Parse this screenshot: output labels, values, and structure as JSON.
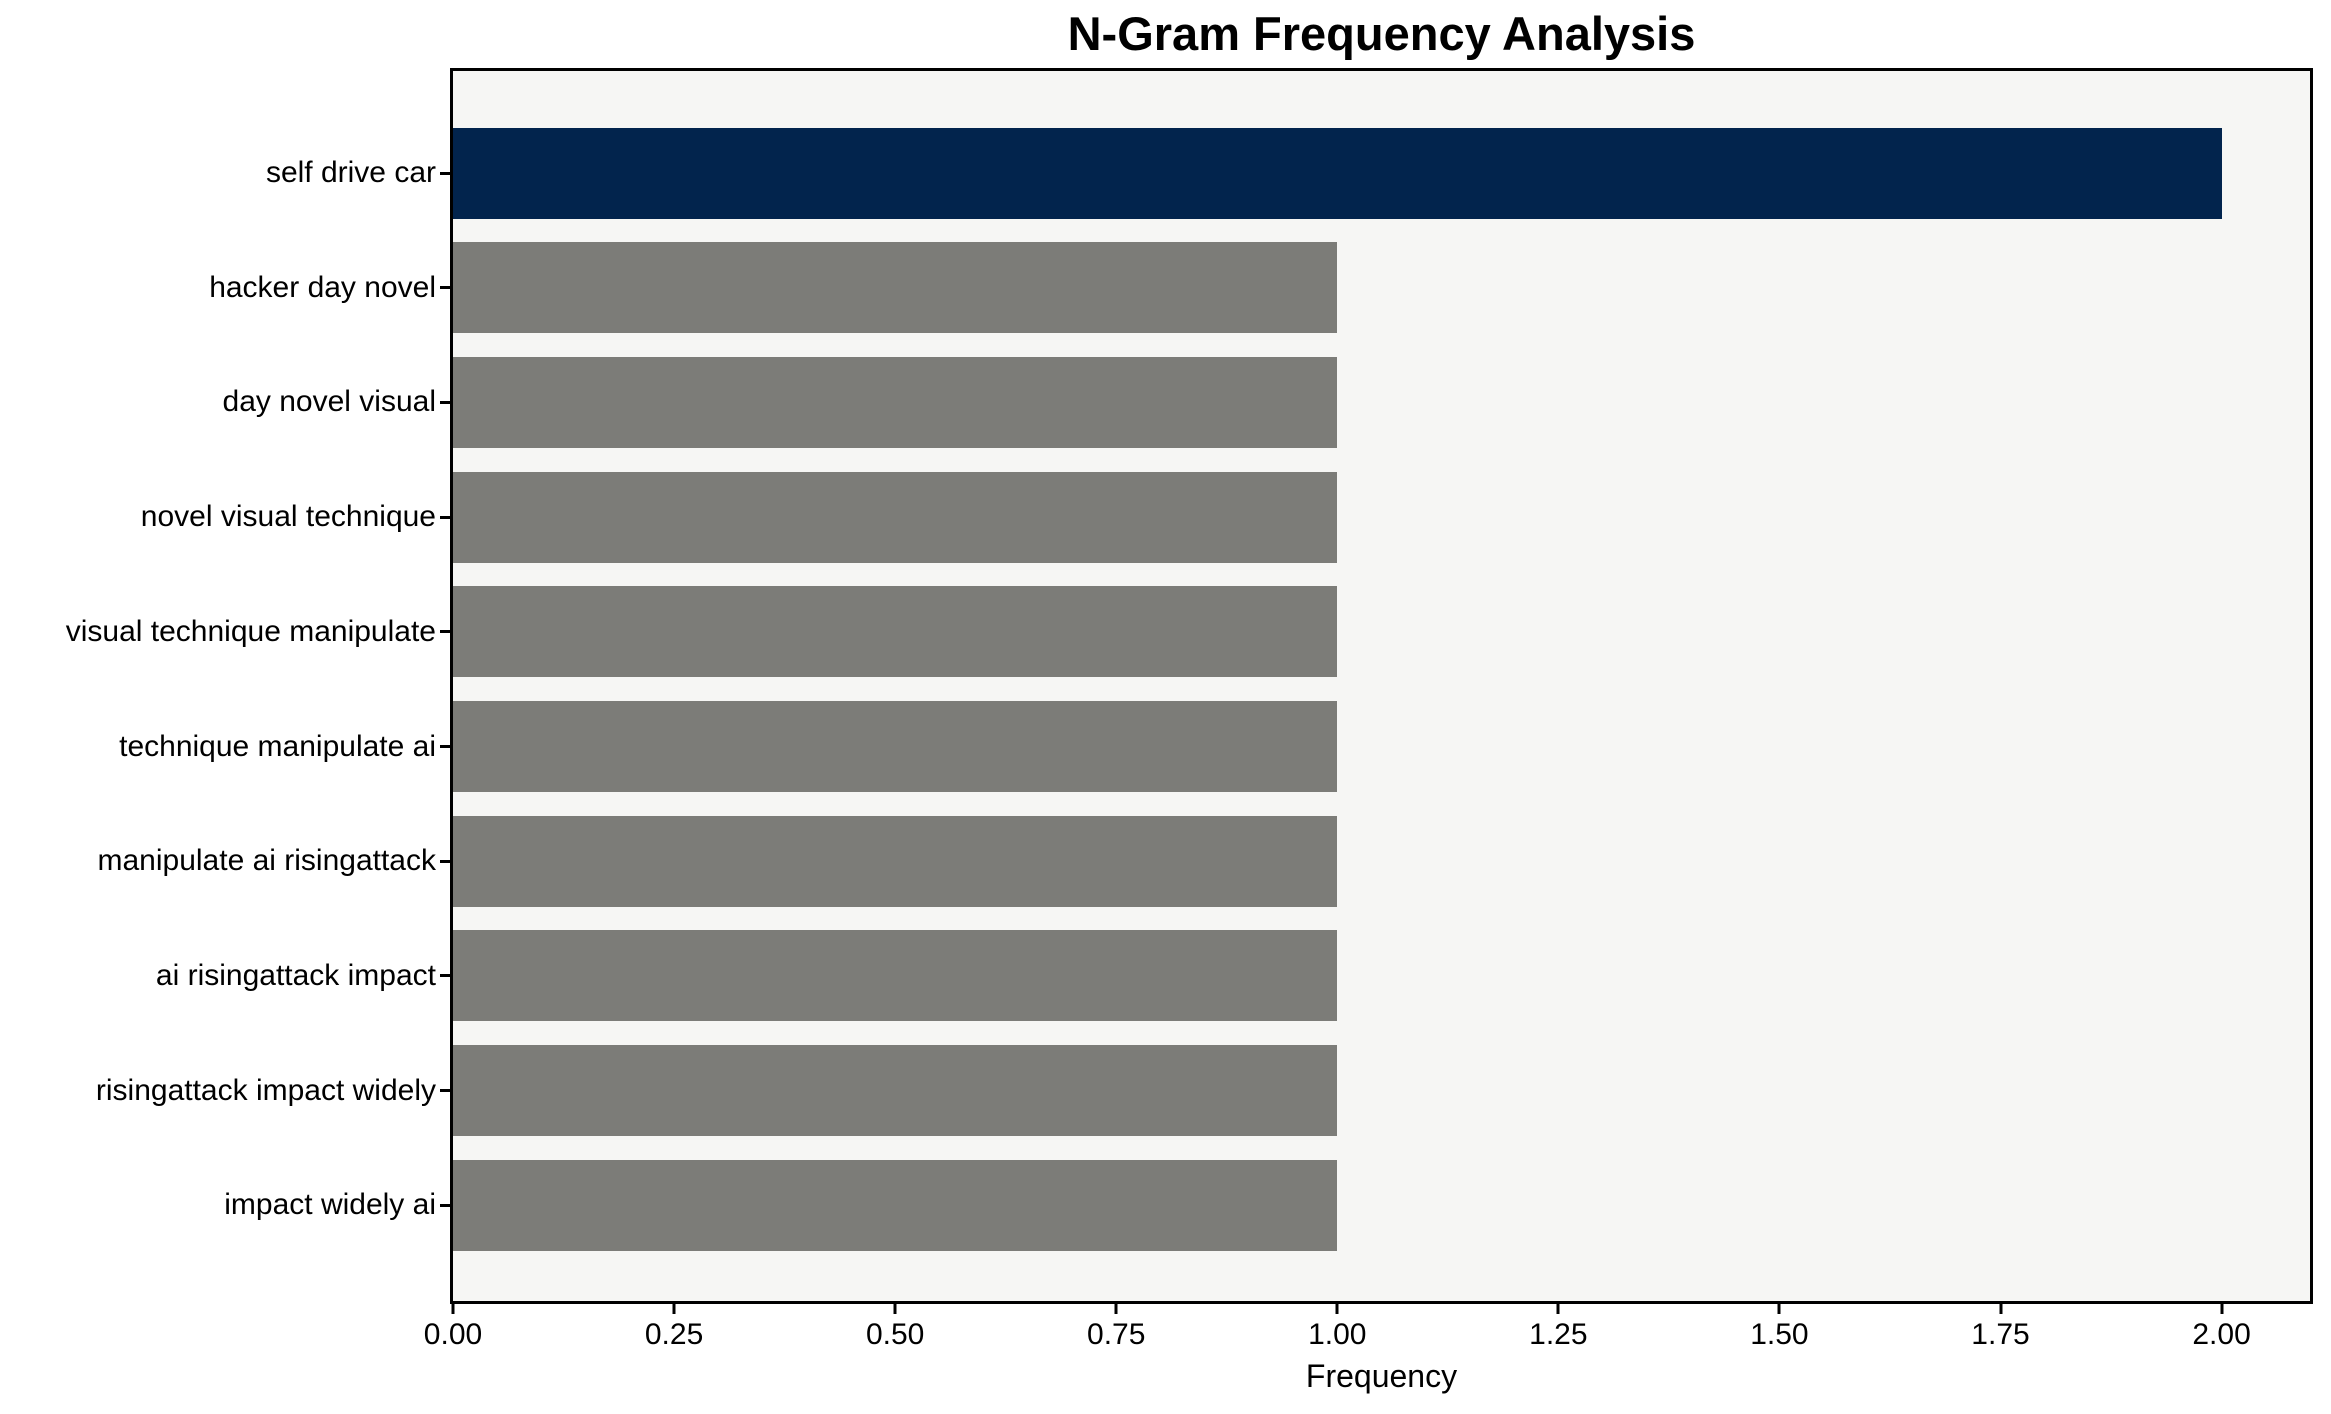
{
  "chart_data": {
    "type": "bar",
    "orientation": "horizontal",
    "title": "N-Gram Frequency Analysis",
    "xlabel": "Frequency",
    "ylabel": "",
    "categories": [
      "self drive car",
      "hacker day novel",
      "day novel visual",
      "novel visual technique",
      "visual technique manipulate",
      "technique manipulate ai",
      "manipulate ai risingattack",
      "ai risingattack impact",
      "risingattack impact widely",
      "impact widely ai"
    ],
    "values": [
      2,
      1,
      1,
      1,
      1,
      1,
      1,
      1,
      1,
      1
    ],
    "colors": [
      "#02244D",
      "#7C7C78",
      "#7C7C78",
      "#7C7C78",
      "#7C7C78",
      "#7C7C78",
      "#7C7C78",
      "#7C7C78",
      "#7C7C78",
      "#7C7C78"
    ],
    "xlim": [
      0,
      2.1
    ],
    "xtick_labels": [
      "0.00",
      "0.25",
      "0.50",
      "0.75",
      "1.00",
      "1.25",
      "1.50",
      "1.75",
      "2.00"
    ],
    "xtick_values": [
      0,
      0.25,
      0.5,
      0.75,
      1.0,
      1.25,
      1.5,
      1.75,
      2.0
    ],
    "grid": false,
    "legend_position": "none",
    "plot_background": "#F6F6F4",
    "spine_color": "#000000",
    "text_color": "#000000"
  }
}
